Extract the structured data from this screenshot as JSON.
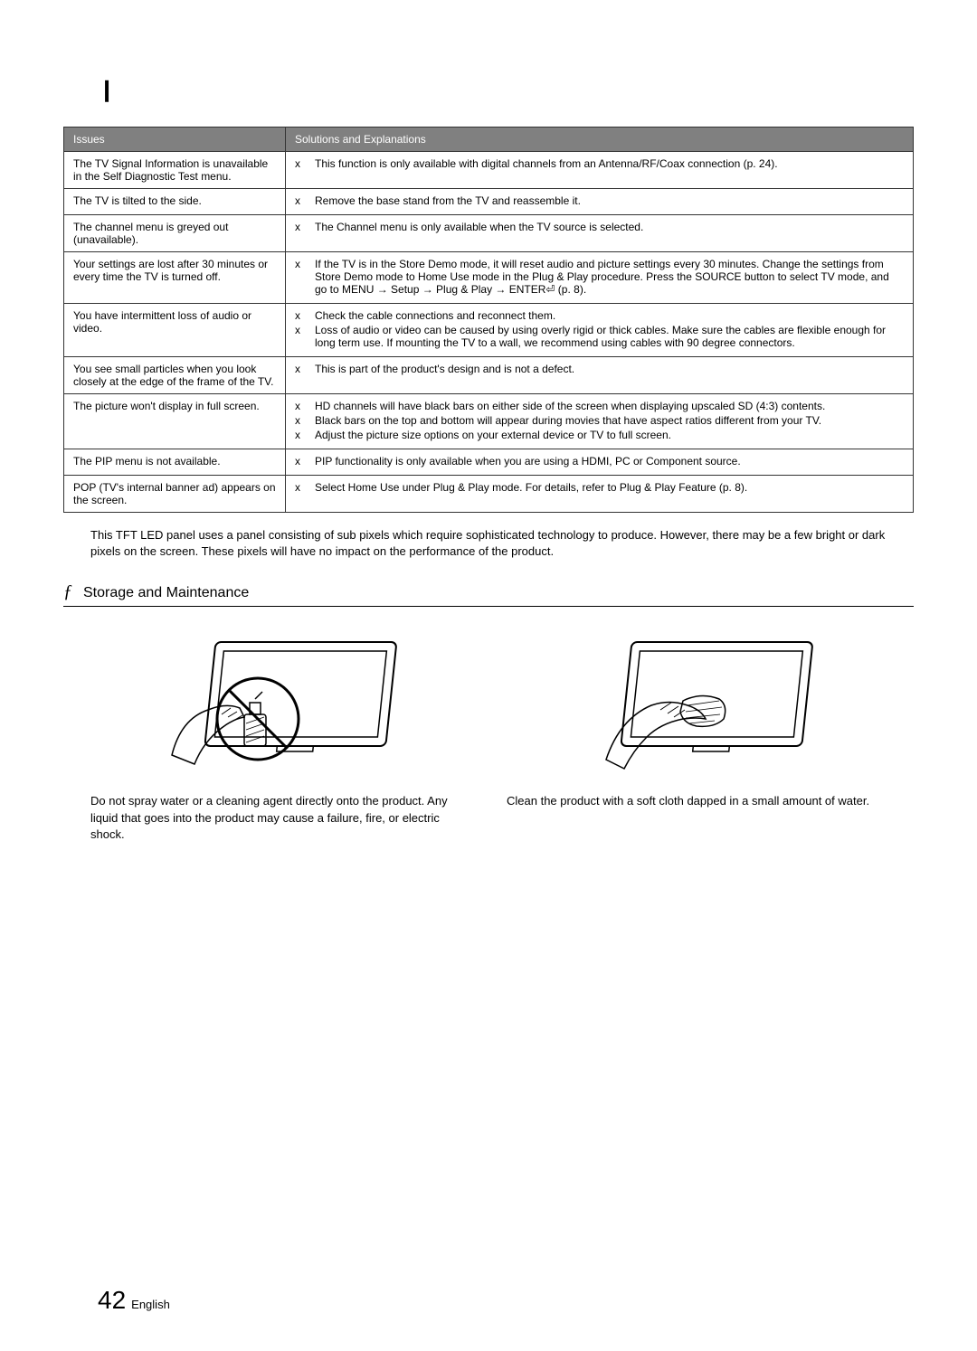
{
  "page_marker": "❙",
  "table": {
    "headers": {
      "issues": "Issues",
      "solutions": "Solutions and Explanations"
    },
    "rows": [
      {
        "issue": "The TV Signal Information is unavailable in the Self Diagnostic Test menu.",
        "solutions": [
          "This function is only available with digital channels from an Antenna/RF/Coax connection (p. 24)."
        ]
      },
      {
        "issue": "The TV is tilted to the side.",
        "solutions": [
          "Remove the base stand from the TV and reassemble it."
        ]
      },
      {
        "issue": "The channel menu is greyed out (unavailable).",
        "solutions": [
          "The Channel menu is only available when the TV source is selected."
        ]
      },
      {
        "issue": "Your settings are lost after 30 minutes or every time the TV is turned off.",
        "solutions": [
          "If the TV is in the Store Demo mode, it will reset audio and picture settings every 30 minutes. Change the settings from Store Demo mode to Home Use mode in the Plug & Play procedure. Press the SOURCE button to select TV mode, and go to MENU → Setup → Plug & Play → ENTER⏎ (p. 8)."
        ]
      },
      {
        "issue": "You have intermittent loss of audio or video.",
        "solutions": [
          "Check the cable connections and reconnect them.",
          "Loss of audio or video can be caused by using overly rigid or thick cables. Make sure the cables are ﬂexible enough for long term use. If mounting the TV to a wall, we recommend using cables with 90 degree connectors."
        ]
      },
      {
        "issue": "You see small particles when you look closely at the edge of the frame of the TV.",
        "solutions": [
          "This is part of the product's design and is not a defect."
        ]
      },
      {
        "issue": "The picture won't display in full screen.",
        "solutions": [
          "HD channels will have black bars on either side of the screen when displaying upscaled SD (4:3) contents.",
          "Black bars on the top and bottom will appear during movies that have aspect ratios different from your TV.",
          "Adjust the picture size options on your external device or TV to full screen."
        ]
      },
      {
        "issue": "The PIP menu is not available.",
        "solutions": [
          "PIP functionality is only available when you are using a HDMI, PC or Component source."
        ]
      },
      {
        "issue": "POP (TV's internal banner ad) appears on the screen.",
        "solutions": [
          "Select Home Use under Plug & Play mode. For details, refer to Plug & Play Feature (p. 8)."
        ]
      }
    ]
  },
  "note": "This TFT LED panel uses a panel consisting of sub pixels which require sophisticated technology to produce. However, there may be a few bright or dark pixels on the screen. These pixels will have no impact on the performance of the product.",
  "section": {
    "symbol": "ƒ",
    "title": "Storage and Maintenance"
  },
  "captions": {
    "left": "Do not spray water or a cleaning agent directly onto the product. Any liquid that goes into the product may cause a failure, ﬁre, or electric shock.",
    "right": "Clean the product with a soft cloth dapped in a small amount of water."
  },
  "footer": {
    "page_number": "42",
    "language": "English"
  },
  "bullet_symbol": "x",
  "colors": {
    "header_bg": "#808080",
    "header_text": "#ffffff",
    "border": "#333333",
    "text": "#000000",
    "background": "#ffffff"
  }
}
